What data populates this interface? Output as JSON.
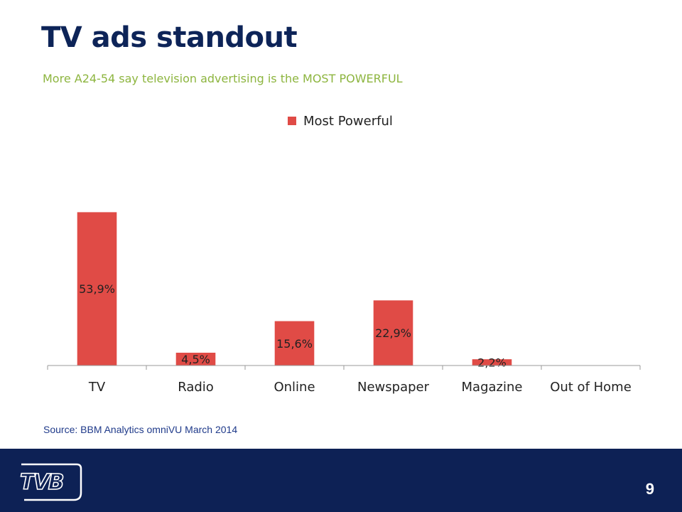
{
  "slide": {
    "title": "TV ads standout",
    "subtitle": "More A24-54 say television advertising is the MOST POWERFUL",
    "source": "Source: BBM Analytics omniVU March 2014",
    "page_number": "9",
    "logo_text": "TVB"
  },
  "colors": {
    "bar": "#e04b46",
    "title": "#0d2458",
    "subtitle": "#8db53f",
    "footer": "#0d2155",
    "source": "#1f3a8a"
  },
  "chart_data": {
    "type": "bar",
    "title": "",
    "xlabel": "",
    "ylabel": "",
    "categories": [
      "TV",
      "Radio",
      "Online",
      "Newspaper",
      "Magazine",
      "Out of Home"
    ],
    "series": [
      {
        "name": "Most Powerful",
        "values": [
          53.9,
          4.5,
          15.6,
          22.9,
          2.2,
          0
        ],
        "labels": [
          "53,9%",
          "4,5%",
          "15,6%",
          "22,9%",
          "2,2%",
          ""
        ]
      }
    ],
    "ylim": [
      0,
      60
    ],
    "grid": false,
    "legend": "top-center"
  }
}
